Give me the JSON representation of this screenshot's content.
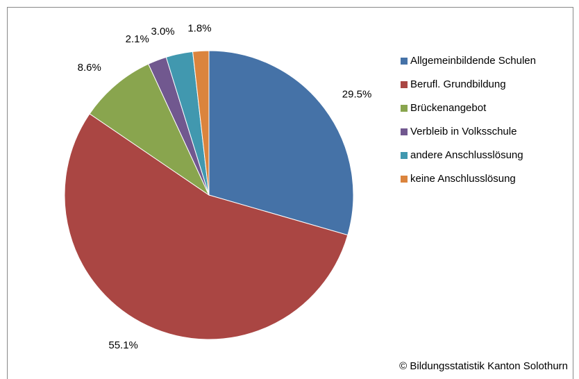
{
  "chart_data": {
    "type": "pie",
    "categories": [
      "Allgemeinbildende Schulen",
      "Berufl. Grundbildung",
      "Brückenangebot",
      "Verbleib in Volksschule",
      "andere Anschlusslösung",
      "keine Anschlusslösung"
    ],
    "values": [
      29.5,
      55.1,
      8.6,
      2.1,
      3.0,
      1.8
    ],
    "value_labels": [
      "29.5%",
      "55.1%",
      "8.6%",
      "2.1%",
      "3.0%",
      "1.8%"
    ],
    "colors": [
      "#4572a7",
      "#aa4643",
      "#89a54e",
      "#71588f",
      "#4198af",
      "#db843d"
    ],
    "legend": "right",
    "source": "© Bildungsstatistik Kanton Solothurn"
  }
}
